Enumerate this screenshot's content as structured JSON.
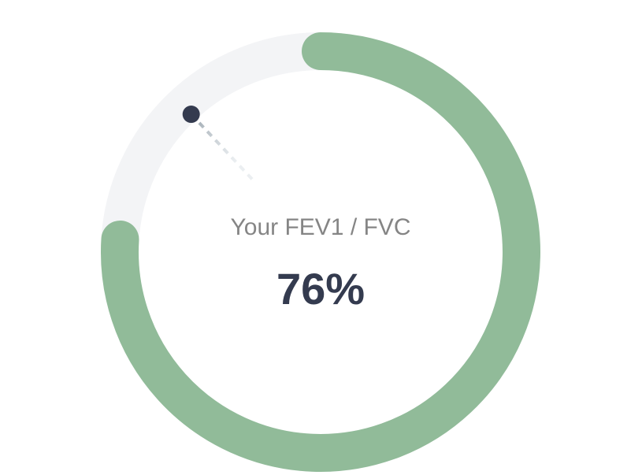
{
  "gauge": {
    "label": "Your FEV1 / FVC",
    "value_text": "76%"
  },
  "chart_data": {
    "type": "gauge",
    "value": 76,
    "min": 0,
    "max": 100,
    "unit": "%",
    "title": "",
    "marker_value": 88,
    "colors": {
      "fill": "#91bb99",
      "track": "#f3f4f6",
      "marker": "#343b4f",
      "marker_line": "#8e9ba6",
      "label": "#858585",
      "value": "#343b4f"
    }
  }
}
